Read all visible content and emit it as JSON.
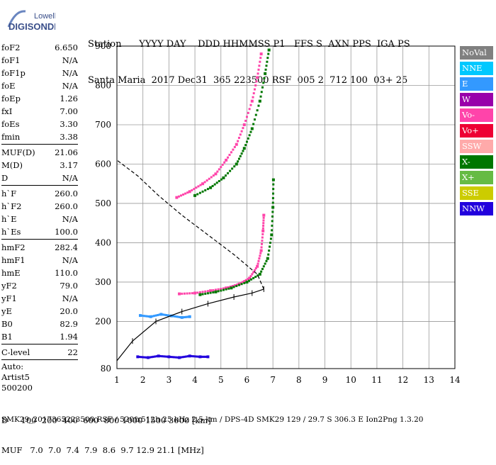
{
  "logo": {
    "line1": "Lowell",
    "line2": "DIGISONDE"
  },
  "header": {
    "line1": "Station      YYYY DAY    DDD HHMMSS P1   FFS S  AXN PPS  IGA PS",
    "line2": "Santa Maria  2017 Dec31  365 223500 RSF  005 2  712 100  03+ 25"
  },
  "params": {
    "group1": [
      {
        "name": "foF2",
        "value": "6.650"
      },
      {
        "name": "foF1",
        "value": "N/A"
      },
      {
        "name": "foF1p",
        "value": "N/A"
      },
      {
        "name": "foE",
        "value": "N/A"
      },
      {
        "name": "foEp",
        "value": "1.26"
      },
      {
        "name": "fxI",
        "value": "7.00"
      },
      {
        "name": "foEs",
        "value": "3.30"
      },
      {
        "name": "fmin",
        "value": "3.38"
      }
    ],
    "group2": [
      {
        "name": "MUF(D)",
        "value": "21.06"
      },
      {
        "name": "M(D)",
        "value": "3.17"
      },
      {
        "name": "D",
        "value": "N/A"
      }
    ],
    "group3": [
      {
        "name": "h`F",
        "value": "260.0"
      },
      {
        "name": "h`F2",
        "value": "260.0"
      },
      {
        "name": "h`E",
        "value": "N/A"
      },
      {
        "name": "h`Es",
        "value": "100.0"
      }
    ],
    "group4": [
      {
        "name": "hmF2",
        "value": "282.4"
      },
      {
        "name": "hmF1",
        "value": "N/A"
      },
      {
        "name": "hmE",
        "value": "110.0"
      },
      {
        "name": "yF2",
        "value": "79.0"
      },
      {
        "name": "yF1",
        "value": "N/A"
      },
      {
        "name": "yE",
        "value": "20.0"
      },
      {
        "name": "B0",
        "value": "82.9"
      },
      {
        "name": "B1",
        "value": "1.94"
      }
    ],
    "group5": [
      {
        "name": "C-level",
        "value": "22"
      }
    ],
    "notes": [
      "Auto:",
      "Artist5",
      "500200"
    ]
  },
  "legend": [
    {
      "label": "NoVal",
      "color": "#808080"
    },
    {
      "label": "NNE",
      "color": "#00c8ff"
    },
    {
      "label": "E",
      "color": "#3399ff"
    },
    {
      "label": "W",
      "color": "#9900aa"
    },
    {
      "label": "Vo-",
      "color": "#ff44aa"
    },
    {
      "label": "Vo+",
      "color": "#ee0033"
    },
    {
      "label": "SSW",
      "color": "#ffaaaa"
    },
    {
      "label": "X-",
      "color": "#007700"
    },
    {
      "label": "X+",
      "color": "#66bb44"
    },
    {
      "label": "SSE",
      "color": "#cccc00"
    },
    {
      "label": "NNW",
      "color": "#2200dd"
    }
  ],
  "footer": {
    "line1": "D     100  200  400  600  800 1000 1500 3000 [km]",
    "line2": "MUF   7.0  7.0  7.4  7.9  8.6  9.7 12.9 21.1 [MHz]",
    "line3": "SMK29_2017365223500.RSF / 520fx512h 25 kHz 2.5 km / DPS-4D SMK29 129 / 29.7 S 306.3 E Ion2Png 1.3.20"
  },
  "chart_data": {
    "type": "scatter",
    "xlabel": "",
    "ylabel": "",
    "xlim": [
      1,
      14
    ],
    "ylim": [
      80,
      900
    ],
    "xticks": [
      "1",
      "2",
      "3",
      "4",
      "5",
      "6",
      "7",
      "8",
      "9",
      "10",
      "11",
      "12",
      "13",
      "14"
    ],
    "yticks": [
      "80",
      "200",
      "300",
      "400",
      "500",
      "600",
      "700",
      "800",
      "900"
    ],
    "grid": true,
    "series": [
      {
        "name": "Vo-",
        "color": "#ff44aa",
        "points": [
          [
            3.4,
            270
          ],
          [
            4.0,
            272
          ],
          [
            4.6,
            278
          ],
          [
            5.2,
            285
          ],
          [
            5.7,
            295
          ],
          [
            6.1,
            310
          ],
          [
            6.4,
            340
          ],
          [
            6.55,
            380
          ],
          [
            6.62,
            430
          ],
          [
            6.65,
            470
          ]
        ]
      },
      {
        "name": "X-",
        "color": "#007700",
        "points": [
          [
            4.2,
            268
          ],
          [
            4.8,
            275
          ],
          [
            5.4,
            285
          ],
          [
            6.0,
            300
          ],
          [
            6.5,
            320
          ],
          [
            6.8,
            360
          ],
          [
            6.95,
            420
          ],
          [
            7.0,
            490
          ],
          [
            7.02,
            560
          ]
        ]
      },
      {
        "name": "Vo-",
        "color": "#ff44aa",
        "points": [
          [
            3.3,
            515
          ],
          [
            3.8,
            530
          ],
          [
            4.3,
            550
          ],
          [
            4.8,
            575
          ],
          [
            5.2,
            610
          ],
          [
            5.6,
            650
          ],
          [
            5.9,
            700
          ],
          [
            6.2,
            760
          ],
          [
            6.4,
            820
          ],
          [
            6.55,
            880
          ]
        ]
      },
      {
        "name": "X-",
        "color": "#007700",
        "points": [
          [
            4.0,
            520
          ],
          [
            4.6,
            540
          ],
          [
            5.1,
            565
          ],
          [
            5.6,
            600
          ],
          [
            5.9,
            640
          ],
          [
            6.2,
            690
          ],
          [
            6.5,
            760
          ],
          [
            6.7,
            830
          ],
          [
            6.85,
            890
          ]
        ]
      },
      {
        "name": "NNW",
        "color": "#2200dd",
        "points": [
          [
            1.8,
            110
          ],
          [
            2.2,
            108
          ],
          [
            2.6,
            112
          ],
          [
            3.0,
            110
          ],
          [
            3.4,
            108
          ],
          [
            3.8,
            112
          ],
          [
            4.2,
            110
          ],
          [
            4.5,
            110
          ]
        ]
      },
      {
        "name": "E",
        "color": "#3399ff",
        "points": [
          [
            1.9,
            215
          ],
          [
            2.3,
            212
          ],
          [
            2.7,
            218
          ],
          [
            3.1,
            214
          ],
          [
            3.5,
            210
          ],
          [
            3.8,
            212
          ]
        ]
      }
    ],
    "profile": {
      "name": "profile",
      "points": [
        [
          1.0,
          100
        ],
        [
          1.6,
          150
        ],
        [
          2.5,
          200
        ],
        [
          3.5,
          225
        ],
        [
          4.5,
          245
        ],
        [
          5.5,
          262
        ],
        [
          6.2,
          272
        ],
        [
          6.65,
          282
        ]
      ]
    },
    "topside": {
      "name": "topside",
      "points": [
        [
          6.65,
          282
        ],
        [
          6.4,
          320
        ],
        [
          5.5,
          370
        ],
        [
          4.5,
          420
        ],
        [
          3.5,
          470
        ],
        [
          2.6,
          520
        ],
        [
          1.8,
          570
        ],
        [
          1.0,
          610
        ]
      ]
    }
  }
}
